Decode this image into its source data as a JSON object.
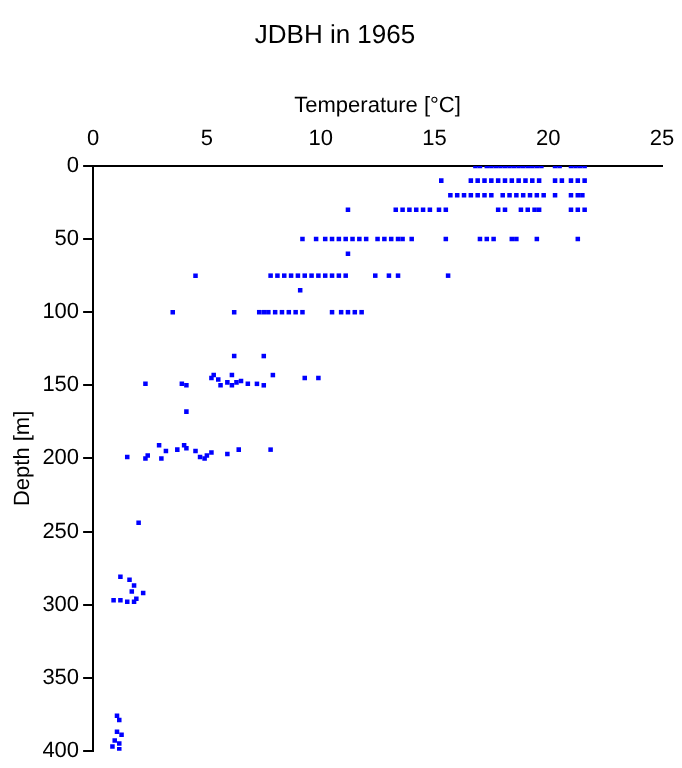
{
  "chart_data": {
    "type": "scatter",
    "title": "JDBH in 1965",
    "xlabel": "Temperature [°C]",
    "ylabel": "Depth [m]",
    "xlim": [
      0,
      25
    ],
    "xticks": [
      0,
      5,
      10,
      15,
      20,
      25
    ],
    "ylim": [
      400,
      0
    ],
    "yticks": [
      0,
      50,
      100,
      150,
      200,
      250,
      300,
      350,
      400
    ],
    "grid": false,
    "legend": false,
    "marker": "square",
    "series": [
      {
        "color": "#0000ff",
        "x": [
          16.8,
          17.0,
          17.3,
          17.5,
          17.7,
          17.9,
          18.1,
          18.3,
          18.5,
          18.7,
          18.9,
          19.1,
          19.3,
          19.5,
          19.7,
          20.3,
          20.5,
          21.0,
          21.2,
          21.4,
          21.6
        ],
        "values": [
          0,
          0,
          0,
          0,
          0,
          0,
          0,
          0,
          0,
          0,
          0,
          0,
          0,
          0,
          0,
          0,
          0,
          0,
          0,
          0,
          0
        ]
      },
      {
        "color": "#0000ff",
        "x": [
          15.3,
          16.6,
          16.9,
          17.2,
          17.5,
          17.8,
          18.1,
          18.4,
          18.7,
          19.0,
          19.3,
          19.6,
          20.3,
          20.6,
          21.0,
          21.3,
          21.6
        ],
        "values": [
          10,
          10,
          10,
          10,
          10,
          10,
          10,
          10,
          10,
          10,
          10,
          10,
          10,
          10,
          10,
          10,
          10
        ]
      },
      {
        "color": "#0000ff",
        "x": [
          15.7,
          16.0,
          16.3,
          16.6,
          16.9,
          17.2,
          17.5,
          18.0,
          18.3,
          18.6,
          18.9,
          19.2,
          19.5,
          19.8,
          20.3,
          21.0,
          21.3,
          21.5
        ],
        "values": [
          20,
          20,
          20,
          20,
          20,
          20,
          20,
          20,
          20,
          20,
          20,
          20,
          20,
          20,
          20,
          20,
          20,
          20
        ]
      },
      {
        "color": "#0000ff",
        "x": [
          11.2,
          13.3,
          13.6,
          13.9,
          14.2,
          14.5,
          14.8,
          15.2,
          15.5,
          17.8,
          18.1,
          18.8,
          19.1,
          19.4,
          19.6,
          21.0,
          21.3,
          21.6
        ],
        "values": [
          30,
          30,
          30,
          30,
          30,
          30,
          30,
          30,
          30,
          30,
          30,
          30,
          30,
          30,
          30,
          30,
          30,
          30
        ]
      },
      {
        "color": "#0000ff",
        "x": [
          9.2,
          9.8,
          10.2,
          10.5,
          10.8,
          11.1,
          11.4,
          11.7,
          12.0,
          12.5,
          12.8,
          13.1,
          13.4,
          13.6,
          14.0,
          15.5,
          17.0,
          17.3,
          17.6,
          18.4,
          18.6,
          19.5,
          21.3,
          11.2
        ],
        "values": [
          50,
          50,
          50,
          50,
          50,
          50,
          50,
          50,
          50,
          50,
          50,
          50,
          50,
          50,
          50,
          50,
          50,
          50,
          50,
          50,
          50,
          50,
          50,
          60
        ]
      },
      {
        "color": "#0000ff",
        "x": [
          4.5,
          7.8,
          8.1,
          8.4,
          8.7,
          9.0,
          9.3,
          9.6,
          9.9,
          10.2,
          10.5,
          10.8,
          11.1,
          12.4,
          13.0,
          13.4,
          15.6,
          9.1
        ],
        "values": [
          75,
          75,
          75,
          75,
          75,
          75,
          75,
          75,
          75,
          75,
          75,
          75,
          75,
          75,
          75,
          75,
          75,
          85
        ]
      },
      {
        "color": "#0000ff",
        "x": [
          3.5,
          6.2,
          7.3,
          7.5,
          7.7,
          8.0,
          8.3,
          8.6,
          8.9,
          9.2,
          10.5,
          10.9,
          11.2,
          11.5,
          11.8
        ],
        "values": [
          100,
          100,
          100,
          100,
          100,
          100,
          100,
          100,
          100,
          100,
          100,
          100,
          100,
          100,
          100
        ]
      },
      {
        "color": "#0000ff",
        "x": [
          6.2,
          7.5,
          5.2,
          5.3,
          5.5,
          9.3,
          9.9,
          6.1,
          7.9,
          2.3,
          3.9,
          4.1,
          5.6,
          5.9,
          6.1,
          6.3,
          6.5,
          6.8,
          7.2,
          7.5,
          4.1
        ],
        "values": [
          130,
          130,
          145,
          143,
          146,
          145,
          145,
          143,
          143,
          149,
          149,
          150,
          150,
          148,
          150,
          148,
          147,
          149,
          149,
          150,
          168
        ]
      },
      {
        "color": "#0000ff",
        "x": [
          1.5,
          2.3,
          2.4,
          3.0,
          2.9,
          3.2,
          3.7,
          4.0,
          4.1,
          4.5,
          4.7,
          4.9,
          5.0,
          5.2,
          5.9,
          6.4,
          7.8,
          2.0
        ],
        "values": [
          199,
          200,
          198,
          200,
          191,
          195,
          194,
          191,
          193,
          195,
          199,
          200,
          198,
          196,
          197,
          194,
          194,
          244
        ]
      },
      {
        "color": "#0000ff",
        "x": [
          1.2,
          1.6,
          0.9,
          1.2,
          1.7,
          1.8,
          1.9,
          2.2,
          1.8,
          1.5,
          1.05,
          1.15,
          1.05,
          1.25,
          0.95,
          1.15,
          0.85,
          1.15
        ],
        "values": [
          281,
          283,
          297,
          297,
          291,
          287,
          296,
          292,
          298,
          298,
          376,
          379,
          387,
          389,
          393,
          395,
          397,
          399
        ]
      }
    ]
  }
}
